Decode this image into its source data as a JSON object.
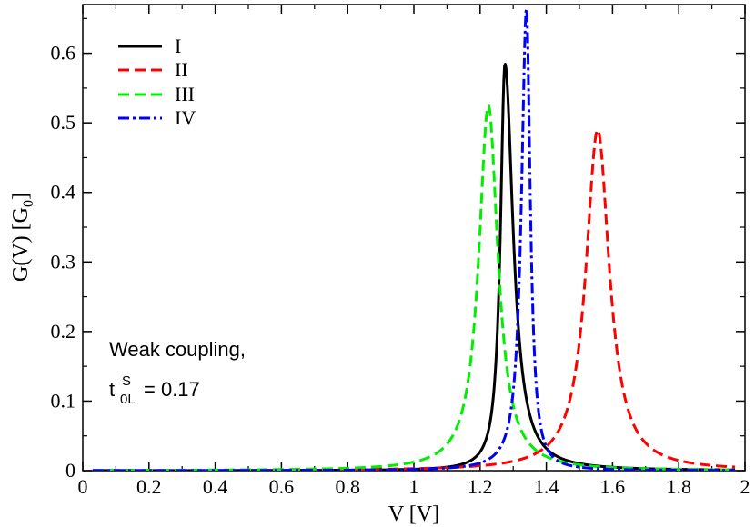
{
  "chart_data": {
    "type": "line",
    "xlabel": "V [V]",
    "ylabel_main": "G(V) [G",
    "ylabel_sub": "0",
    "ylabel_end": "]",
    "xlim": [
      0,
      2
    ],
    "ylim": [
      0,
      0.67
    ],
    "xticks": [
      0,
      0.2,
      0.4,
      0.6,
      0.8,
      1,
      1.2,
      1.4,
      1.6,
      1.8,
      2
    ],
    "xtick_labels": [
      "0",
      "0.2",
      "0.4",
      "0.6",
      "0.8",
      "1",
      "1.2",
      "1.4",
      "1.6",
      "1.8",
      "2"
    ],
    "yticks": [
      0,
      0.1,
      0.2,
      0.3,
      0.4,
      0.5,
      0.6
    ],
    "ytick_labels": [
      "0",
      "0.1",
      "0.2",
      "0.3",
      "0.4",
      "0.5",
      "0.6"
    ],
    "legend_position": "top-left",
    "series": [
      {
        "name": "I",
        "color": "#000000",
        "dash": "solid",
        "x0": 1.275,
        "gamma": 0.03,
        "peak": 0.585,
        "asym": 0.55
      },
      {
        "name": "II",
        "color": "#ff0000",
        "dash": "dashed",
        "x0": 1.555,
        "gamma": 0.043,
        "peak": 0.49,
        "asym": 1.0
      },
      {
        "name": "III",
        "color": "#00ee00",
        "dash": "dashed",
        "x0": 1.225,
        "gamma": 0.035,
        "peak": 0.525,
        "asym": 1.0
      },
      {
        "name": "IV",
        "color": "#0000ff",
        "dash": "dashdot",
        "x0": 1.34,
        "gamma": 0.014,
        "peak": 0.665,
        "asym": 1.3
      }
    ],
    "annotation": {
      "line1": "Weak coupling,",
      "t": "t",
      "sup": "S",
      "sub": "0L",
      "value": "= 0.17"
    }
  }
}
